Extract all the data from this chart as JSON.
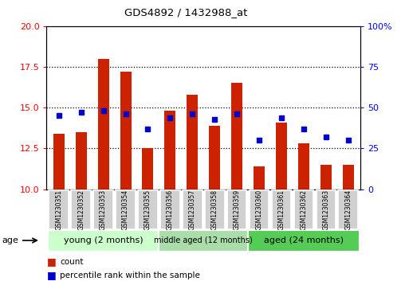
{
  "title": "GDS4892 / 1432988_at",
  "samples": [
    "GSM1230351",
    "GSM1230352",
    "GSM1230353",
    "GSM1230354",
    "GSM1230355",
    "GSM1230356",
    "GSM1230357",
    "GSM1230358",
    "GSM1230359",
    "GSM1230360",
    "GSM1230361",
    "GSM1230362",
    "GSM1230363",
    "GSM1230364"
  ],
  "counts": [
    13.4,
    13.5,
    18.0,
    17.2,
    12.5,
    14.8,
    15.8,
    13.9,
    16.5,
    11.4,
    14.1,
    12.8,
    11.5,
    11.5
  ],
  "percentiles": [
    45,
    47,
    48,
    46,
    37,
    44,
    46,
    43,
    46,
    30,
    44,
    37,
    32,
    30
  ],
  "ylim_left": [
    10,
    20
  ],
  "ylim_right": [
    0,
    100
  ],
  "yticks_left": [
    10,
    12.5,
    15,
    17.5,
    20
  ],
  "yticks_right": [
    0,
    25,
    50,
    75,
    100
  ],
  "bar_color": "#cc2200",
  "dot_color": "#0000cc",
  "groups": [
    {
      "label": "young (2 months)",
      "start": 0,
      "end": 5
    },
    {
      "label": "middle aged (12 months)",
      "start": 5,
      "end": 9
    },
    {
      "label": "aged (24 months)",
      "start": 9,
      "end": 14
    }
  ],
  "group_colors": [
    "#ccffcc",
    "#aaddaa",
    "#55cc55"
  ],
  "xlabel_age": "age",
  "legend_count": "count",
  "legend_percentile": "percentile rank within the sample",
  "bar_width": 0.5,
  "sample_box_color": "#d0d0d0",
  "grid_yticks": [
    12.5,
    15.0,
    17.5
  ]
}
